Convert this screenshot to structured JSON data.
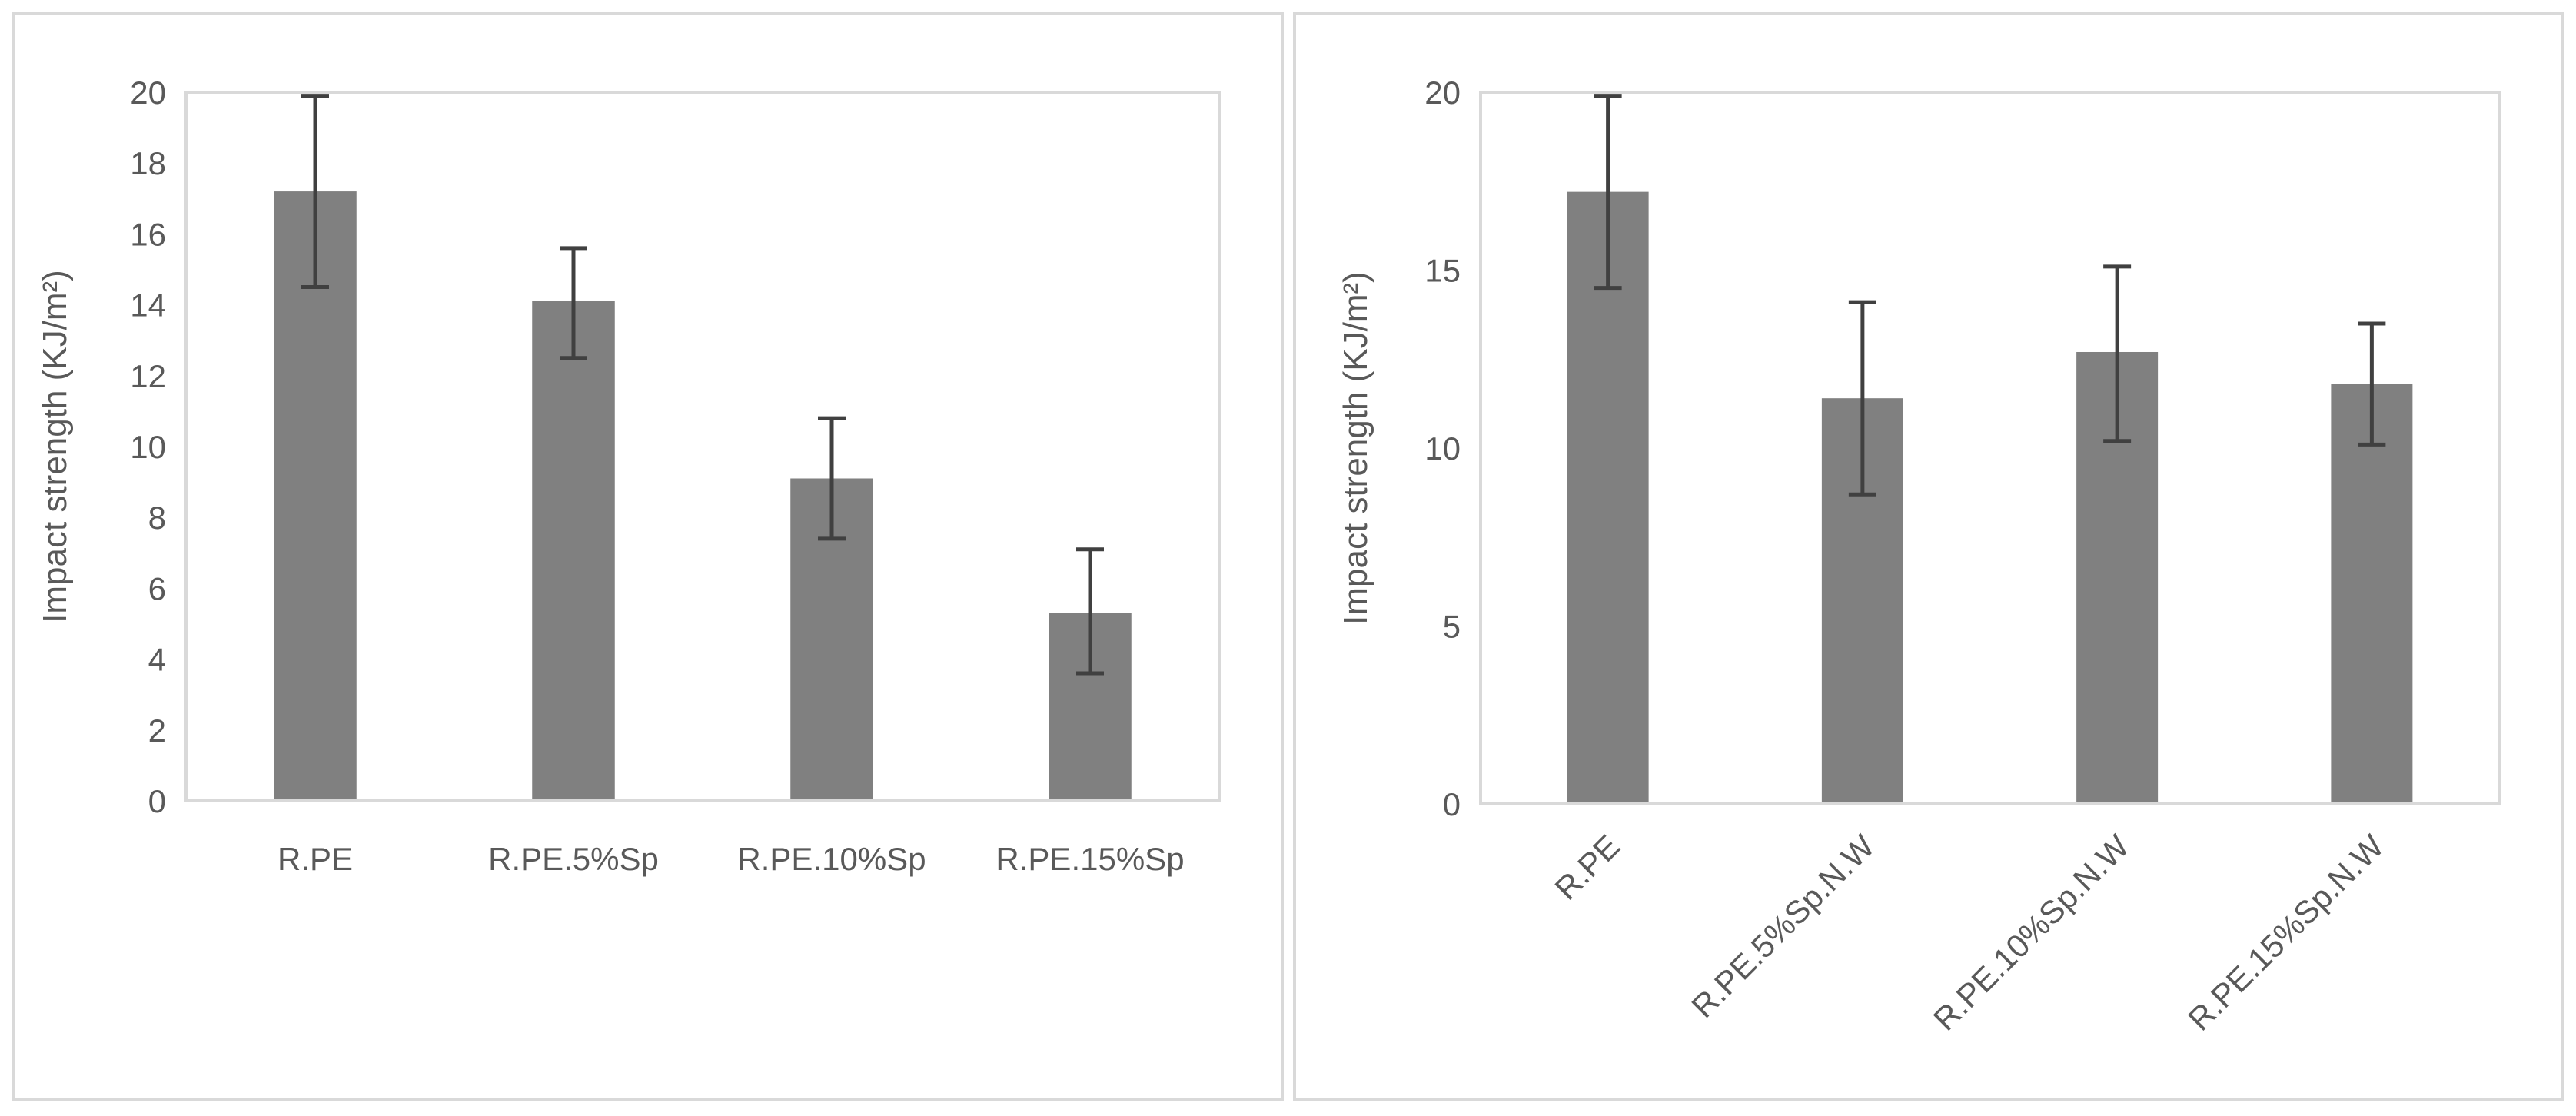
{
  "chart_data": [
    {
      "type": "bar",
      "title": "",
      "xlabel": "",
      "ylabel": "Impact strength (KJ/m²)",
      "ylim": [
        0,
        20
      ],
      "yticks": [
        0,
        2,
        4,
        6,
        8,
        10,
        12,
        14,
        16,
        18,
        20
      ],
      "categories": [
        "R.PE",
        "R.PE.5%Sp",
        "R.PE.10%Sp",
        "R.PE.15%Sp"
      ],
      "values": [
        17.2,
        14.1,
        9.1,
        5.3
      ],
      "error_low": [
        14.5,
        12.5,
        7.4,
        3.6
      ],
      "error_high": [
        19.9,
        15.6,
        10.8,
        7.1
      ],
      "tick_labels": [
        "0",
        "2",
        "4",
        "6",
        "8",
        "10",
        "12",
        "14",
        "16",
        "18",
        "20"
      ],
      "bar_color": "#808080",
      "error_color": "#404040",
      "rotated_labels": false
    },
    {
      "type": "bar",
      "title": "",
      "xlabel": "",
      "ylabel": "Impact strength (KJ/m²)",
      "ylim": [
        0,
        20
      ],
      "yticks": [
        0,
        5,
        10,
        15,
        20
      ],
      "categories": [
        "R.PE",
        "R.PE.5%Sp.N.W",
        "R.PE.10%Sp.N.W",
        "R.PE.15%Sp.N.W"
      ],
      "values": [
        17.2,
        11.4,
        12.7,
        11.8
      ],
      "error_low": [
        14.5,
        8.7,
        10.2,
        10.1
      ],
      "error_high": [
        19.9,
        14.1,
        15.1,
        13.5
      ],
      "tick_labels": [
        "0",
        "5",
        "10",
        "15",
        "20"
      ],
      "bar_color": "#808080",
      "error_color": "#404040",
      "rotated_labels": true
    }
  ]
}
